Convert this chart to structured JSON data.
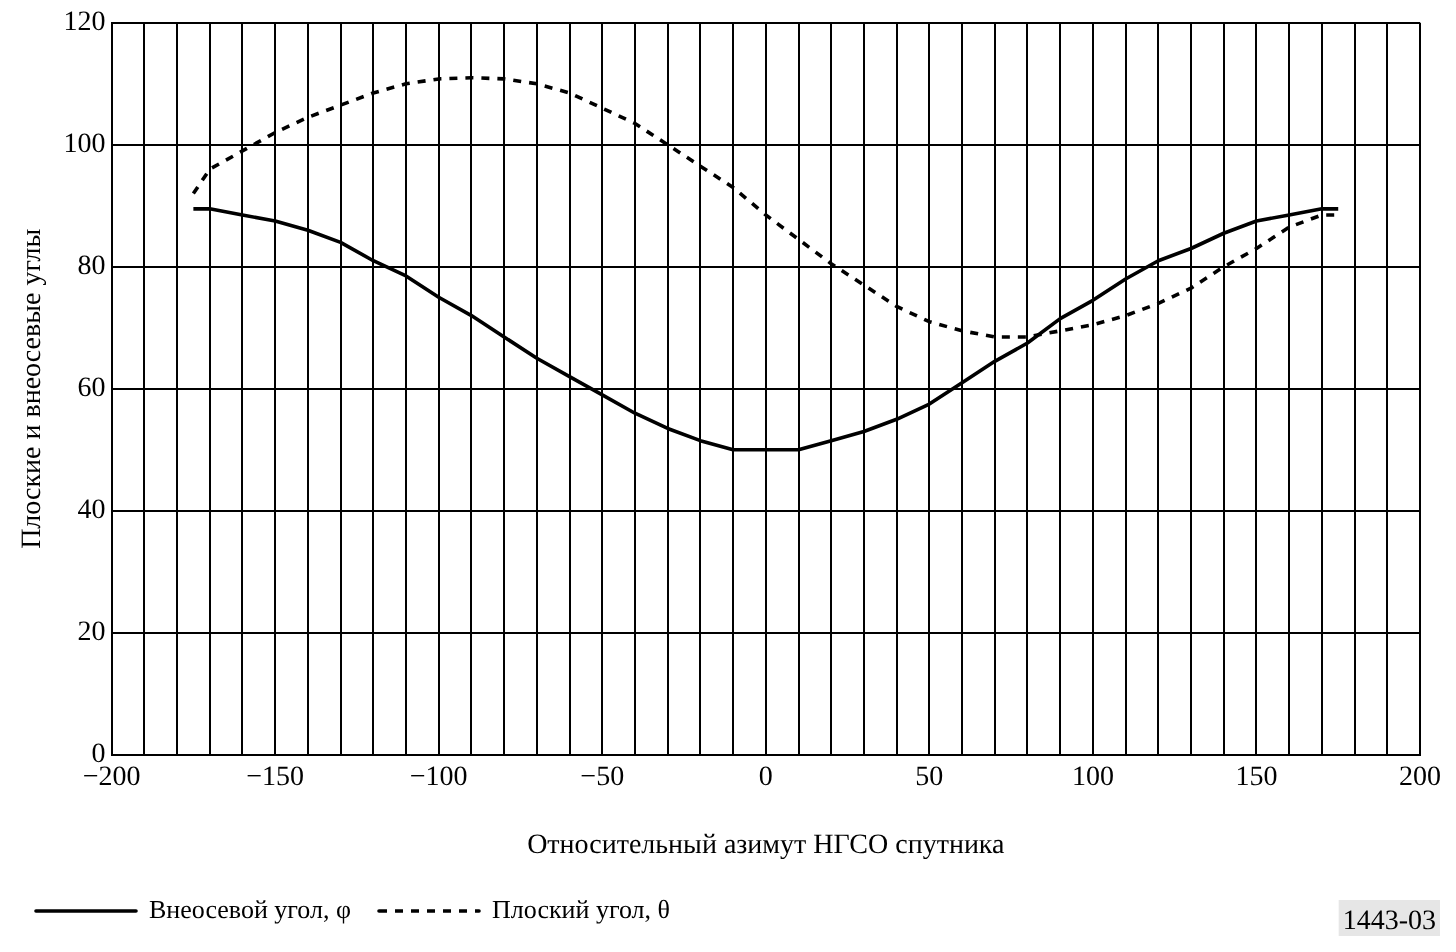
{
  "chart_data": {
    "type": "line",
    "xlabel": "Относительный азимут НГСО спутника",
    "ylabel": "Плоские и внеосевые углы",
    "x": [
      -175,
      -170,
      -160,
      -150,
      -140,
      -130,
      -120,
      -110,
      -100,
      -90,
      -80,
      -70,
      -60,
      -50,
      -40,
      -30,
      -20,
      -10,
      0,
      10,
      20,
      30,
      40,
      50,
      60,
      70,
      80,
      90,
      100,
      110,
      120,
      130,
      140,
      150,
      160,
      170,
      175
    ],
    "series": [
      {
        "name": "Внеосевой угол, φ",
        "color": "#000000",
        "line_style": "solid",
        "values": [
          89.5,
          89.5,
          88.5,
          87.5,
          86,
          84,
          81,
          78.5,
          75,
          72,
          68.5,
          65,
          62,
          59,
          56,
          53.5,
          51.5,
          50,
          50,
          50,
          51.5,
          53,
          55,
          57.5,
          61,
          64.5,
          67.5,
          71.5,
          74.5,
          78,
          81,
          83,
          85.5,
          87.5,
          88.5,
          89.5,
          89.5
        ]
      },
      {
        "name": "Плоский угол, θ",
        "color": "#000000",
        "line_style": "dashed",
        "values": [
          92,
          96,
          99,
          102,
          104.5,
          106.5,
          108.5,
          110,
          110.8,
          111,
          110.8,
          110,
          108.5,
          106,
          103.5,
          100,
          96.5,
          93,
          88.5,
          84.5,
          80.5,
          77,
          73.5,
          71,
          69.5,
          68.5,
          68.5,
          69.5,
          70.5,
          72,
          74,
          76.5,
          80,
          83,
          86.5,
          88.5,
          88.5
        ]
      }
    ],
    "xlim": [
      -200,
      200
    ],
    "xticks": [
      -200,
      {
        "value": -190,
        "label": null
      },
      {
        "value": -180,
        "label": null
      },
      {
        "value": -170,
        "label": null
      },
      {
        "value": -160,
        "label": null
      },
      -150,
      {
        "value": -140,
        "label": null
      },
      {
        "value": -130,
        "label": null
      },
      {
        "value": -120,
        "label": null
      },
      {
        "value": -110,
        "label": null
      },
      -100,
      {
        "value": -90,
        "label": null
      },
      {
        "value": -80,
        "label": null
      },
      {
        "value": -70,
        "label": null
      },
      {
        "value": -60,
        "label": null
      },
      -50,
      {
        "value": -40,
        "label": null
      },
      {
        "value": -30,
        "label": null
      },
      {
        "value": -20,
        "label": null
      },
      {
        "value": -10,
        "label": null
      },
      0,
      {
        "value": 10,
        "label": null
      },
      {
        "value": 20,
        "label": null
      },
      {
        "value": 30,
        "label": null
      },
      {
        "value": 40,
        "label": null
      },
      50,
      {
        "value": 60,
        "label": null
      },
      {
        "value": 70,
        "label": null
      },
      {
        "value": 80,
        "label": null
      },
      {
        "value": 90,
        "label": null
      },
      100,
      {
        "value": 110,
        "label": null
      },
      {
        "value": 120,
        "label": null
      },
      {
        "value": 130,
        "label": null
      },
      {
        "value": 140,
        "label": null
      },
      150,
      {
        "value": 160,
        "label": null
      },
      {
        "value": 170,
        "label": null
      },
      {
        "value": 180,
        "label": null
      },
      {
        "value": 190,
        "label": null
      },
      200
    ],
    "ylim": [
      0,
      120
    ],
    "yticks": [
      0,
      20,
      40,
      60,
      80,
      100,
      120
    ],
    "grid": true,
    "legend": "bottom left",
    "marker": "none",
    "annotations": [
      "1443-03"
    ]
  }
}
